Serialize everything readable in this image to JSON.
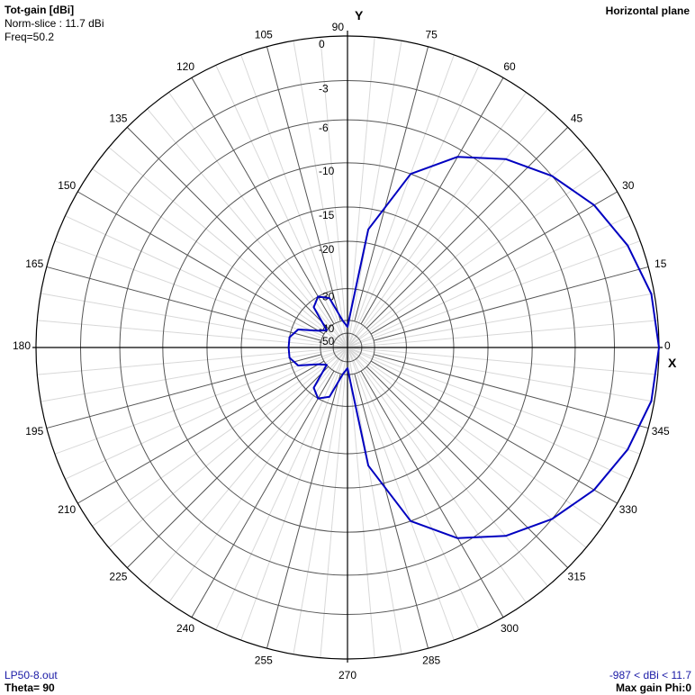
{
  "header": {
    "title": "Tot-gain [dBi]",
    "norm": "Norm-slice : 11.7 dBi",
    "freq": "Freq=50.2",
    "plane": "Horizontal plane"
  },
  "footer": {
    "file": "LP50-8.out",
    "theta": "Theta= 90",
    "range": "-987 < dBi < 11.7",
    "maxgain": "Max gain Phi:0"
  },
  "colors": {
    "pattern": "#0000c0",
    "grid": "#d8d8d8",
    "axes": "#000000",
    "rings": "#555555"
  },
  "chart_data": {
    "type": "polar-line",
    "axis_labels": {
      "x": "X",
      "y": "Y"
    },
    "angle_ticks": [
      0,
      15,
      30,
      45,
      60,
      75,
      90,
      105,
      120,
      135,
      150,
      165,
      180,
      195,
      210,
      225,
      240,
      255,
      270,
      285,
      300,
      315,
      330,
      345
    ],
    "radial_ticks_db": [
      "0",
      "-3",
      "-6",
      "-10",
      "-15",
      "-20",
      "-30",
      "-40",
      "-50"
    ],
    "series": [
      {
        "unit": "dB relative to max",
        "points": [
          {
            "phi": 0,
            "db": 0
          },
          {
            "phi": 10,
            "db": -0.2
          },
          {
            "phi": 20,
            "db": -0.9
          },
          {
            "phi": 30,
            "db": -1.8
          },
          {
            "phi": 40,
            "db": -3.0
          },
          {
            "phi": 50,
            "db": -4.6
          },
          {
            "phi": 60,
            "db": -6.7
          },
          {
            "phi": 70,
            "db": -10
          },
          {
            "phi": 80,
            "db": -18
          },
          {
            "phi": 90,
            "db": -45
          },
          {
            "phi": 100,
            "db": -40
          },
          {
            "phi": 110,
            "db": -32
          },
          {
            "phi": 120,
            "db": -30
          },
          {
            "phi": 130,
            "db": -32
          },
          {
            "phi": 140,
            "db": -40
          },
          {
            "phi": 150,
            "db": -38
          },
          {
            "phi": 160,
            "db": -32
          },
          {
            "phi": 170,
            "db": -30
          },
          {
            "phi": 180,
            "db": -30
          },
          {
            "phi": 190,
            "db": -30
          },
          {
            "phi": 200,
            "db": -32
          },
          {
            "phi": 210,
            "db": -38
          },
          {
            "phi": 220,
            "db": -40
          },
          {
            "phi": 230,
            "db": -32
          },
          {
            "phi": 240,
            "db": -30
          },
          {
            "phi": 250,
            "db": -32
          },
          {
            "phi": 260,
            "db": -40
          },
          {
            "phi": 270,
            "db": -45
          },
          {
            "phi": 280,
            "db": -18
          },
          {
            "phi": 290,
            "db": -10
          },
          {
            "phi": 300,
            "db": -6.7
          },
          {
            "phi": 310,
            "db": -4.6
          },
          {
            "phi": 320,
            "db": -3.0
          },
          {
            "phi": 330,
            "db": -1.8
          },
          {
            "phi": 340,
            "db": -0.9
          },
          {
            "phi": 350,
            "db": -0.2
          },
          {
            "phi": 360,
            "db": 0
          }
        ]
      }
    ]
  }
}
